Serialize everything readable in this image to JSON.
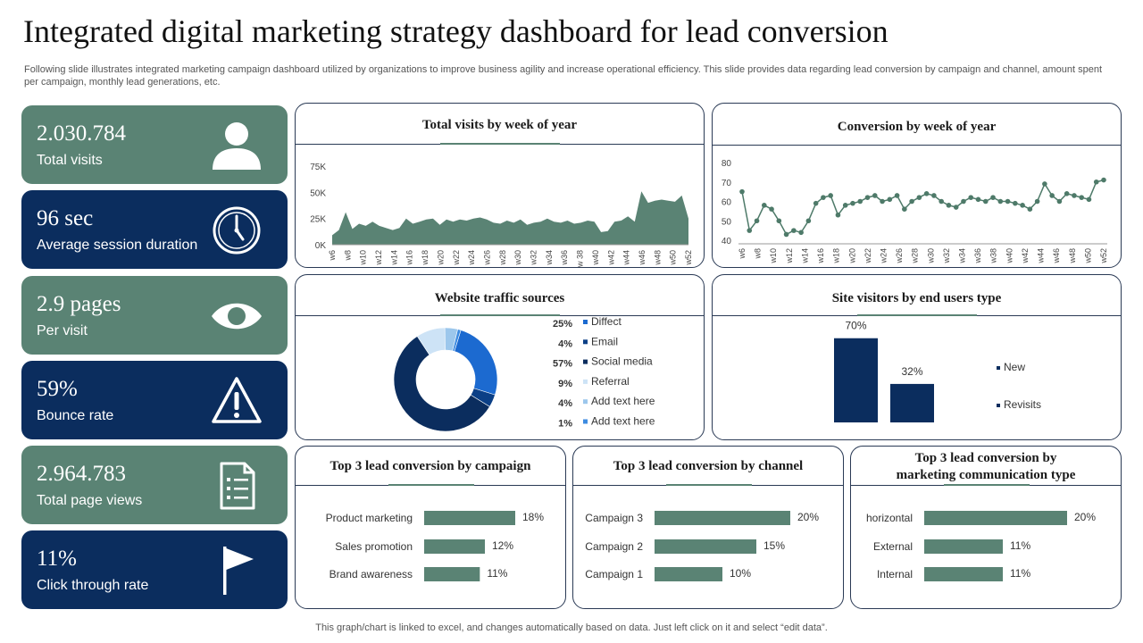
{
  "header": {
    "title": "Integrated digital marketing strategy dashboard for lead conversion",
    "subtitle": "Following slide illustrates integrated marketing campaign dashboard utilized by organizations to improve business agility and increase operational efficiency. This slide provides data regarding lead conversion by campaign and channel, amount spent per campaign, monthly lead generations, etc."
  },
  "footer": {
    "note": "This graph/chart is linked to excel, and changes automatically based on data. Just left click on it and select “edit data”."
  },
  "colors": {
    "green": "#5a8374",
    "navy": "#0b2d5e",
    "point": "#4e7a69"
  },
  "kpis": [
    {
      "value": "2.030.784",
      "label": "Total visits",
      "icon": "user-icon",
      "theme": "green"
    },
    {
      "value": "96 sec",
      "label": "Average session duration",
      "icon": "clock-icon",
      "theme": "navy"
    },
    {
      "value": "2.9 pages",
      "label": "Per visit",
      "icon": "eye-icon",
      "theme": "green"
    },
    {
      "value": "59%",
      "label": "Bounce rate",
      "icon": "warning-icon",
      "theme": "navy"
    },
    {
      "value": "2.964.783",
      "label": "Total page views",
      "icon": "document-list-icon",
      "theme": "green"
    },
    {
      "value": "11%",
      "label": "Click through rate",
      "icon": "flag-icon",
      "theme": "navy"
    }
  ],
  "chart_data": [
    {
      "id": "visits",
      "type": "area",
      "title": "Total visits by week of year",
      "ylim": [
        0,
        75000
      ],
      "yticks": [
        0,
        25000,
        50000,
        75000
      ],
      "ytick_labels": [
        "0K",
        "25K",
        "50K",
        "75K"
      ],
      "xtick_labels": [
        "w6",
        "w8",
        "w10",
        "w12",
        "w14",
        "w16",
        "w18",
        "w20",
        "w22",
        "w24",
        "w26",
        "w28",
        "w30",
        "w32",
        "w34",
        "w36",
        "w 38",
        "w40",
        "w42",
        "w44",
        "w46",
        "w48",
        "w50",
        "w52"
      ],
      "values": [
        9000,
        14000,
        31000,
        15000,
        20000,
        18000,
        22000,
        18000,
        16000,
        14000,
        16000,
        25000,
        20000,
        22000,
        24000,
        25000,
        19000,
        24000,
        22000,
        24000,
        23000,
        25000,
        26000,
        24000,
        21000,
        20000,
        23000,
        21000,
        24000,
        19000,
        21000,
        22000,
        25000,
        22000,
        21000,
        23000,
        20000,
        21000,
        23000,
        22000,
        12000,
        13000,
        22000,
        23000,
        27000,
        22000,
        51000,
        40000,
        42000,
        43000,
        42000,
        41000,
        47000,
        25000
      ]
    },
    {
      "id": "conversion",
      "type": "line",
      "title": "Conversion by week of year",
      "ylim": [
        40,
        80
      ],
      "yticks": [
        40,
        50,
        60,
        70,
        80
      ],
      "xtick_labels": [
        "w6",
        "w8",
        "w10",
        "w12",
        "w14",
        "w16",
        "w18",
        "w20",
        "w22",
        "w24",
        "w26",
        "w28",
        "w30",
        "w32",
        "w34",
        "w36",
        "w38",
        "w40",
        "w42",
        "w44",
        "w46",
        "w48",
        "w50",
        "w52"
      ],
      "values": [
        65,
        45,
        50,
        58,
        56,
        50,
        43,
        45,
        44,
        50,
        59,
        62,
        63,
        53,
        58,
        59,
        60,
        62,
        63,
        60,
        61,
        63,
        56,
        60,
        62,
        64,
        63,
        60,
        58,
        57,
        60,
        62,
        61,
        60,
        62,
        60,
        60,
        59,
        58,
        56,
        60,
        69,
        63,
        60,
        64,
        63,
        62,
        61,
        70,
        71
      ]
    },
    {
      "id": "traffic",
      "type": "pie",
      "title": "Website traffic sources",
      "slices": [
        {
          "label": "Diffect",
          "value": 25,
          "value_label": "25%",
          "color": "#1c6ad0"
        },
        {
          "label": "Email",
          "value": 4,
          "value_label": "4%",
          "color": "#0b3f86"
        },
        {
          "label": "Social media",
          "value": 57,
          "value_label": "57%",
          "color": "#0b2d5e"
        },
        {
          "label": "Referral",
          "value": 9,
          "value_label": "9%",
          "color": "#cde3f6"
        },
        {
          "label": "Add text here",
          "value": 4,
          "value_label": "4%",
          "color": "#9cc7ec"
        },
        {
          "label": "Add text here",
          "value": 1,
          "value_label": "1%",
          "color": "#3d8be0"
        }
      ]
    },
    {
      "id": "visitors",
      "type": "bar",
      "title": "Site visitors by end users type",
      "categories": [
        "New",
        "Revisits"
      ],
      "values": [
        70,
        32
      ],
      "value_labels": [
        "70%",
        "32%"
      ],
      "ylim": [
        0,
        75
      ]
    },
    {
      "id": "campaign",
      "type": "bar",
      "orientation": "horizontal",
      "title": "Top 3 lead conversion by campaign",
      "categories": [
        "Product marketing",
        "Sales promotion",
        "Brand awareness"
      ],
      "values": [
        18,
        12,
        11
      ],
      "value_labels": [
        "18%",
        "12%",
        "11%"
      ]
    },
    {
      "id": "channel",
      "type": "bar",
      "orientation": "horizontal",
      "title": "Top 3 lead conversion by channel",
      "categories": [
        "Campaign 3",
        "Campaign 2",
        "Campaign 1"
      ],
      "values": [
        20,
        15,
        10
      ],
      "value_labels": [
        "20%",
        "15%",
        "10%"
      ]
    },
    {
      "id": "commtype",
      "type": "bar",
      "orientation": "horizontal",
      "title": "Top 3 lead conversion by marketing communication type",
      "title_lines": [
        "Top 3 lead conversion by",
        "marketing communication type"
      ],
      "categories": [
        "horizontal",
        "External",
        "Internal"
      ],
      "values": [
        20,
        11,
        11
      ],
      "value_labels": [
        "20%",
        "11%",
        "11%"
      ]
    }
  ]
}
